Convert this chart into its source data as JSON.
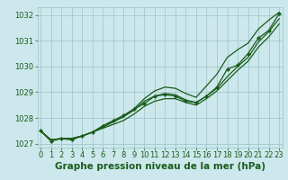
{
  "xlabel": "Graphe pression niveau de la mer (hPa)",
  "hours": [
    0,
    1,
    2,
    3,
    4,
    5,
    6,
    7,
    8,
    9,
    10,
    11,
    12,
    13,
    14,
    15,
    16,
    17,
    18,
    19,
    20,
    21,
    22,
    23
  ],
  "line_smooth1": [
    1027.5,
    1027.15,
    1027.2,
    1027.2,
    1027.3,
    1027.45,
    1027.6,
    1027.75,
    1027.9,
    1028.15,
    1028.45,
    1028.65,
    1028.75,
    1028.75,
    1028.6,
    1028.5,
    1028.75,
    1029.05,
    1029.45,
    1029.85,
    1030.2,
    1030.75,
    1031.15,
    1031.65
  ],
  "line_smooth2": [
    1027.5,
    1027.15,
    1027.2,
    1027.2,
    1027.3,
    1027.45,
    1027.65,
    1027.85,
    1028.05,
    1028.3,
    1028.65,
    1028.85,
    1028.95,
    1028.9,
    1028.7,
    1028.6,
    1028.85,
    1029.15,
    1029.6,
    1030.0,
    1030.35,
    1030.95,
    1031.35,
    1031.85
  ],
  "line_upper": [
    1027.5,
    1027.15,
    1027.2,
    1027.2,
    1027.3,
    1027.45,
    1027.65,
    1027.85,
    1028.05,
    1028.35,
    1028.75,
    1029.05,
    1029.2,
    1029.15,
    1028.95,
    1028.8,
    1029.25,
    1029.7,
    1030.35,
    1030.65,
    1030.9,
    1031.45,
    1031.8,
    1032.1
  ],
  "line_markers": [
    1027.5,
    1027.1,
    1027.2,
    1027.15,
    1027.3,
    1027.45,
    1027.7,
    1027.9,
    1028.1,
    1028.35,
    1028.55,
    1028.85,
    1028.9,
    1028.85,
    1028.65,
    1028.6,
    1028.85,
    1029.2,
    1029.9,
    1030.05,
    1030.5,
    1031.1,
    1031.4,
    1032.05
  ],
  "ylim": [
    1026.85,
    1032.3
  ],
  "yticks": [
    1027,
    1028,
    1029,
    1030,
    1031,
    1032
  ],
  "bg_color": "#cce8ec",
  "line_color": "#1a5c1a",
  "grid_color": "#99c4c8",
  "label_color": "#1a5c1a",
  "title_color": "#1a5c1a",
  "xlabel_fontsize": 7.5,
  "tick_fontsize": 6.0
}
